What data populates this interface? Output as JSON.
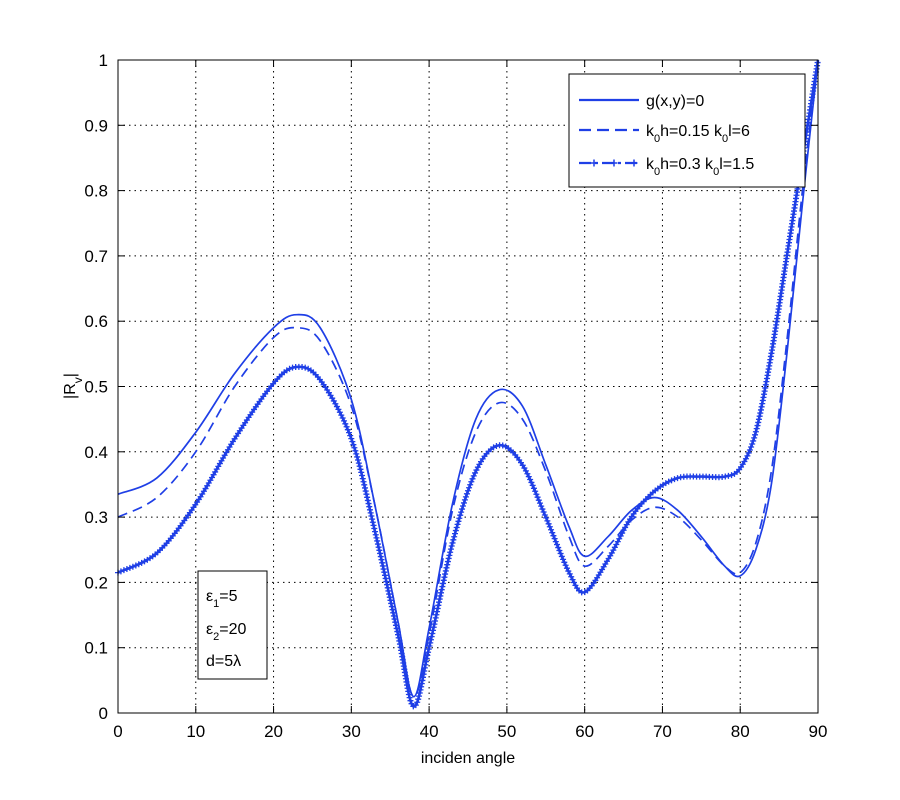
{
  "chart_data": {
    "type": "line",
    "title": "",
    "xlabel": "inciden angle",
    "ylabel": "|Rv|",
    "ylabel_parts": {
      "base": "|R",
      "sub": "v",
      "tail": "|"
    },
    "xlim": [
      0,
      90
    ],
    "ylim": [
      0,
      1
    ],
    "xticks": [
      0,
      10,
      20,
      30,
      40,
      50,
      60,
      70,
      80,
      90
    ],
    "yticks": [
      0,
      0.1,
      0.2,
      0.3,
      0.4,
      0.5,
      0.6,
      0.7,
      0.8,
      0.9,
      1
    ],
    "ytick_labels": [
      "0",
      "0.1",
      "0.2",
      "0.3",
      "0.4",
      "0.5",
      "0.6",
      "0.7",
      "0.8",
      "0.9",
      "1"
    ],
    "grid": true,
    "legend_position": "top-right",
    "color": "#1f3fe6",
    "series": [
      {
        "name": "g(x,y)=0",
        "label_parts": [
          {
            "t": "g(x,y)=0"
          }
        ],
        "style": "solid",
        "x": [
          0,
          5,
          10,
          15,
          20,
          23,
          26,
          30,
          33,
          36,
          38,
          40,
          43,
          46,
          49,
          52,
          55,
          58,
          60,
          63,
          66,
          69,
          72,
          75,
          78,
          80,
          82,
          84,
          86,
          88,
          90
        ],
        "y": [
          0.335,
          0.36,
          0.43,
          0.52,
          0.59,
          0.61,
          0.59,
          0.48,
          0.32,
          0.14,
          0.025,
          0.13,
          0.32,
          0.45,
          0.495,
          0.47,
          0.38,
          0.285,
          0.24,
          0.27,
          0.31,
          0.33,
          0.31,
          0.27,
          0.225,
          0.21,
          0.25,
          0.35,
          0.55,
          0.78,
          1.0
        ]
      },
      {
        "name": "k0h=0.15 k0l=6",
        "label_parts": [
          {
            "t": "k"
          },
          {
            "t": "0",
            "sub": true
          },
          {
            "t": "h=0.15 k"
          },
          {
            "t": "0",
            "sub": true
          },
          {
            "t": "l=6"
          }
        ],
        "style": "dashed",
        "x": [
          0,
          5,
          10,
          15,
          20,
          23,
          26,
          30,
          33,
          36,
          38,
          40,
          43,
          46,
          49,
          52,
          55,
          58,
          60,
          63,
          66,
          69,
          72,
          75,
          78,
          80,
          82,
          84,
          86,
          88,
          90
        ],
        "y": [
          0.3,
          0.33,
          0.4,
          0.5,
          0.575,
          0.59,
          0.57,
          0.47,
          0.32,
          0.14,
          0.025,
          0.12,
          0.31,
          0.43,
          0.475,
          0.45,
          0.37,
          0.27,
          0.225,
          0.255,
          0.295,
          0.315,
          0.3,
          0.265,
          0.225,
          0.215,
          0.26,
          0.37,
          0.57,
          0.8,
          1.0
        ]
      },
      {
        "name": "k0h=0.3 k0l=1.5",
        "label_parts": [
          {
            "t": "k"
          },
          {
            "t": "0",
            "sub": true
          },
          {
            "t": "h=0.3 k"
          },
          {
            "t": "0",
            "sub": true
          },
          {
            "t": "l=1.5"
          }
        ],
        "style": "dashdot-markers",
        "x": [
          0,
          5,
          10,
          15,
          20,
          23,
          26,
          30,
          33,
          36,
          38,
          40,
          43,
          46,
          49,
          52,
          55,
          58,
          60,
          63,
          66,
          69,
          72,
          75,
          78,
          80,
          82,
          84,
          86,
          88,
          90
        ],
        "y": [
          0.215,
          0.245,
          0.32,
          0.42,
          0.505,
          0.53,
          0.51,
          0.42,
          0.28,
          0.12,
          0.01,
          0.1,
          0.26,
          0.37,
          0.41,
          0.38,
          0.3,
          0.215,
          0.185,
          0.235,
          0.3,
          0.34,
          0.36,
          0.362,
          0.362,
          0.375,
          0.43,
          0.55,
          0.7,
          0.85,
          1.0
        ]
      }
    ],
    "annotation": [
      [
        {
          "t": "ε"
        },
        {
          "t": "1",
          "sub": true
        },
        {
          "t": "=5"
        }
      ],
      [
        {
          "t": "ε"
        },
        {
          "t": "2",
          "sub": true
        },
        {
          "t": "=20"
        }
      ],
      [
        {
          "t": "d=5λ"
        }
      ]
    ]
  }
}
